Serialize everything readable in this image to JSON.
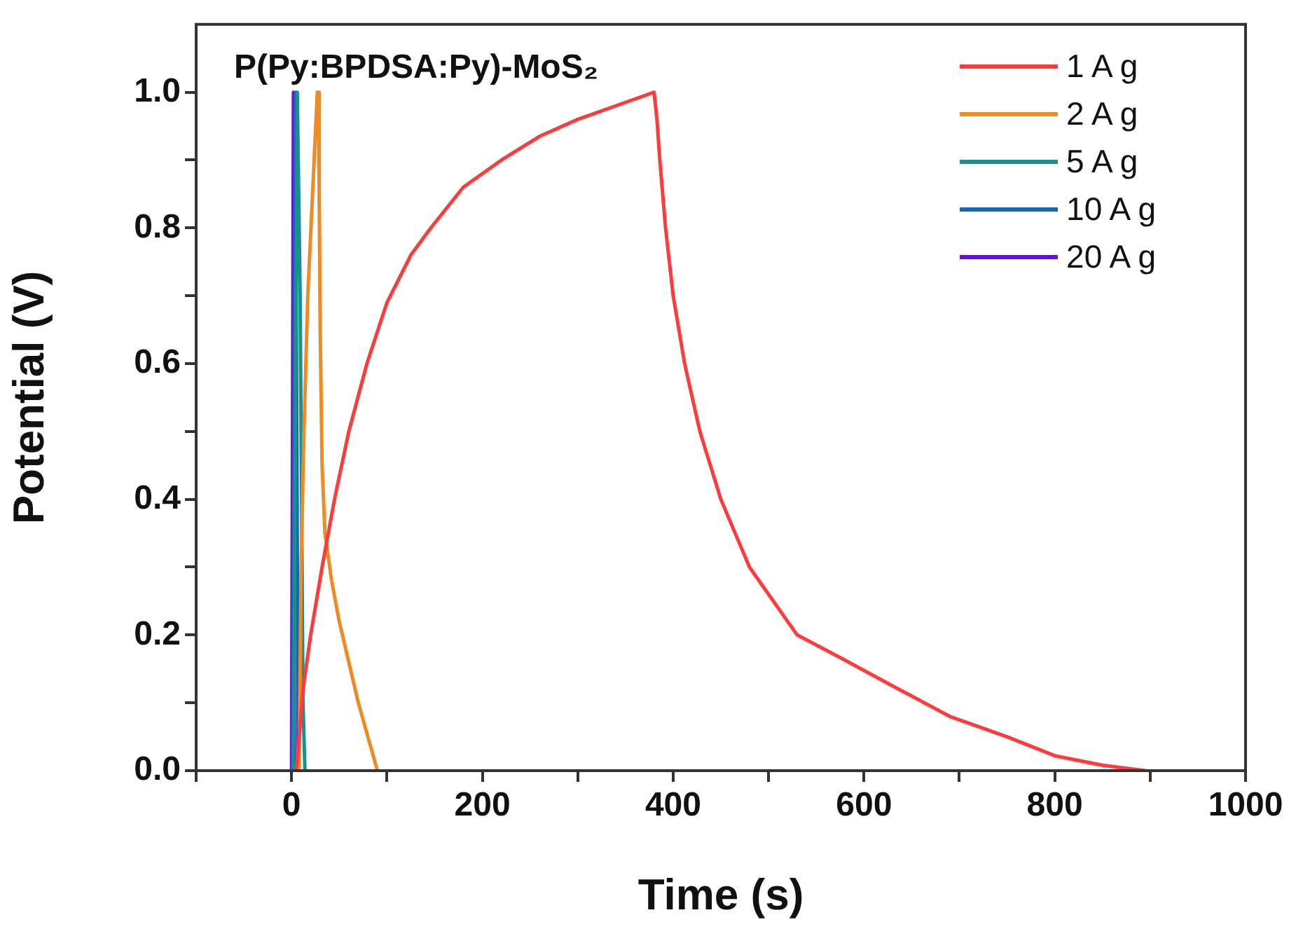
{
  "chart_data": {
    "type": "line",
    "title": "P(Py:BPDSA:Py)-MoS₂",
    "xlabel": "Time (s)",
    "ylabel": "Potential (V)",
    "xlim": [
      -100,
      1000
    ],
    "xticks": [
      {
        "value": -100,
        "label": null
      },
      0,
      {
        "value": 100,
        "label": null
      },
      200,
      {
        "value": 300,
        "label": null
      },
      400,
      {
        "value": 500,
        "label": null
      },
      600,
      {
        "value": 700,
        "label": null
      },
      800,
      {
        "value": 900,
        "label": null
      },
      1000
    ],
    "ylim": [
      0,
      1.1
    ],
    "yticks": [
      {
        "value": 0,
        "label": "0.0"
      },
      {
        "value": 0.1,
        "label": null
      },
      {
        "value": 0.2,
        "label": "0.2"
      },
      {
        "value": 0.3,
        "label": null
      },
      {
        "value": 0.4,
        "label": "0.4"
      },
      {
        "value": 0.5,
        "label": null
      },
      {
        "value": 0.6,
        "label": "0.6"
      },
      {
        "value": 0.7,
        "label": null
      },
      {
        "value": 0.8,
        "label": "0.8"
      },
      {
        "value": 0.9,
        "label": null
      },
      {
        "value": 1,
        "label": "1.0"
      }
    ],
    "grid": false,
    "legend": "top right",
    "marker": "none",
    "line_style": "solid",
    "series": [
      {
        "name": "1 A g",
        "color": "#ff3b3b",
        "x": [
          5,
          8,
          12,
          20,
          32,
          45,
          60,
          79,
          100,
          125,
          146,
          180,
          220,
          260,
          300,
          340,
          380,
          383,
          386,
          392,
          400,
          412,
          428,
          450,
          480,
          530,
          576,
          630,
          690,
          750,
          800,
          850,
          895
        ],
        "values": [
          0,
          0.05,
          0.12,
          0.2,
          0.3,
          0.4,
          0.5,
          0.6,
          0.69,
          0.76,
          0.8,
          0.86,
          0.9,
          0.935,
          0.96,
          0.98,
          1.0,
          0.96,
          0.9,
          0.8,
          0.7,
          0.6,
          0.5,
          0.4,
          0.3,
          0.2,
          0.166,
          0.125,
          0.08,
          0.05,
          0.022,
          0.008,
          0
        ]
      },
      {
        "name": "2 A g",
        "color": "#f08a24",
        "x": [
          8,
          10,
          13,
          17,
          22,
          27,
          28,
          29,
          30,
          32,
          35,
          42,
          50,
          60,
          70,
          80,
          90
        ],
        "values": [
          0,
          0.3,
          0.5,
          0.7,
          0.85,
          1.0,
          1.0,
          0.85,
          0.65,
          0.45,
          0.35,
          0.28,
          0.22,
          0.16,
          0.1,
          0.05,
          0
        ]
      },
      {
        "name": "5 A g",
        "color": "#1a8f8f",
        "x": [
          2,
          6,
          9,
          12,
          14
        ],
        "values": [
          0,
          1.0,
          0.7,
          0.1,
          0
        ]
      },
      {
        "name": "10 A g",
        "color": "#1666b0",
        "x": [
          1,
          4,
          7
        ],
        "values": [
          0,
          1.0,
          0
        ]
      },
      {
        "name": "20 A g",
        "color": "#6a0fd8",
        "x": [
          0,
          2,
          3
        ],
        "values": [
          0,
          1.0,
          0
        ]
      }
    ]
  }
}
